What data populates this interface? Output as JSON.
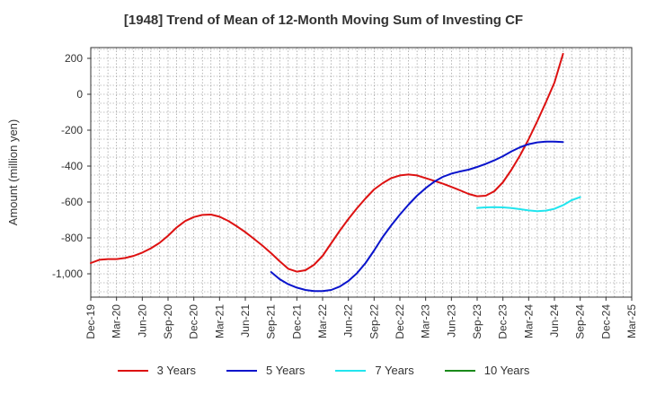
{
  "chart_data": {
    "type": "line",
    "title": "[1948]  Trend of Mean of 12-Month Moving Sum of Investing CF",
    "xlabel": "",
    "ylabel": "Amount (million yen)",
    "ylim": [
      -1130,
      260
    ],
    "yticks": [
      200,
      0,
      -200,
      -400,
      -600,
      -800,
      -1000
    ],
    "ytick_labels": [
      "200",
      "0",
      "-200",
      "-400",
      "-600",
      "-800",
      "-1,000"
    ],
    "xtick_labels": [
      "Dec-19",
      "Mar-20",
      "Jun-20",
      "Sep-20",
      "Dec-20",
      "Mar-21",
      "Jun-21",
      "Sep-21",
      "Dec-21",
      "Mar-22",
      "Jun-22",
      "Sep-22",
      "Dec-22",
      "Mar-23",
      "Jun-23",
      "Sep-23",
      "Dec-23",
      "Mar-24",
      "Jun-24",
      "Sep-24",
      "Dec-24",
      "Mar-25"
    ],
    "grid": true,
    "legend_position": "bottom",
    "series": [
      {
        "name": "3 Years",
        "color": "#dd1111",
        "start_index": 0,
        "values": [
          -940,
          -922,
          -918,
          -918,
          -912,
          -900,
          -882,
          -858,
          -828,
          -788,
          -742,
          -706,
          -684,
          -672,
          -670,
          -682,
          -705,
          -735,
          -768,
          -805,
          -843,
          -885,
          -930,
          -972,
          -988,
          -980,
          -950,
          -900,
          -830,
          -760,
          -695,
          -635,
          -580,
          -530,
          -495,
          -467,
          -452,
          -447,
          -452,
          -467,
          -482,
          -498,
          -516,
          -535,
          -555,
          -568,
          -565,
          -540,
          -490,
          -420,
          -340,
          -250,
          -150,
          -45,
          65,
          225
        ]
      },
      {
        "name": "5 Years",
        "color": "#0a14cc",
        "start_index": 21,
        "values": [
          -990,
          -1030,
          -1058,
          -1077,
          -1090,
          -1096,
          -1096,
          -1090,
          -1071,
          -1040,
          -997,
          -940,
          -870,
          -795,
          -730,
          -670,
          -615,
          -565,
          -523,
          -487,
          -460,
          -442,
          -430,
          -420,
          -405,
          -388,
          -368,
          -345,
          -318,
          -295,
          -278,
          -268,
          -264,
          -264,
          -266
        ]
      },
      {
        "name": "7 Years",
        "color": "#22e5ee",
        "start_index": 45,
        "values": [
          -633,
          -630,
          -629,
          -630,
          -634,
          -640,
          -647,
          -651,
          -648,
          -638,
          -618,
          -590,
          -573
        ]
      },
      {
        "name": "10 Years",
        "color": "#1a8a1a",
        "start_index": 0,
        "values": []
      }
    ]
  }
}
